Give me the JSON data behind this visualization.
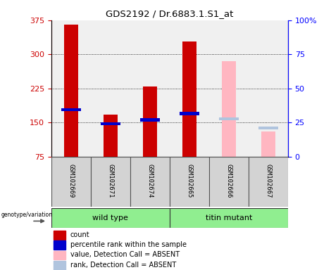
{
  "title": "GDS2192 / Dr.6883.1.S1_at",
  "samples": [
    "GSM102669",
    "GSM102671",
    "GSM102674",
    "GSM102665",
    "GSM102666",
    "GSM102667"
  ],
  "count_values": [
    365,
    168,
    230,
    328,
    null,
    null
  ],
  "count_color": "#cc0000",
  "percentile_values": [
    178,
    147,
    156,
    170,
    null,
    null
  ],
  "percentile_color": "#0000cc",
  "absent_value_values": [
    null,
    null,
    null,
    null,
    285,
    130
  ],
  "absent_value_color": "#ffb6c1",
  "absent_rank_values": [
    null,
    null,
    null,
    null,
    158,
    138
  ],
  "absent_rank_color": "#b0c4de",
  "ylim": [
    75,
    375
  ],
  "yticks_left": [
    75,
    150,
    225,
    300,
    375
  ],
  "yticks_right": [
    0,
    25,
    50,
    75,
    100
  ],
  "bar_width": 0.35,
  "bg_plot": "#f0f0f0",
  "bg_sample_panel": "#d3d3d3",
  "bg_group_wt": "#90ee90",
  "bg_group_tm": "#90ee90",
  "wt_indices": [
    0,
    1,
    2
  ],
  "tm_indices": [
    3,
    4,
    5
  ],
  "legend_items": [
    {
      "label": "count",
      "color": "#cc0000"
    },
    {
      "label": "percentile rank within the sample",
      "color": "#0000cc"
    },
    {
      "label": "value, Detection Call = ABSENT",
      "color": "#ffb6c1"
    },
    {
      "label": "rank, Detection Call = ABSENT",
      "color": "#b0c4de"
    }
  ]
}
